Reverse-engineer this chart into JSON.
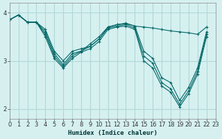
{
  "xlabel": "Humidex (Indice chaleur)",
  "ylabel": "",
  "bg_color": "#d6f0f0",
  "grid_color": "#b0d8d8",
  "line_color": "#006666",
  "marker": "+",
  "xlim": [
    0,
    23
  ],
  "ylim": [
    1.8,
    4.2
  ],
  "yticks": [
    2,
    3,
    4
  ],
  "xticks": [
    0,
    1,
    2,
    3,
    4,
    5,
    6,
    7,
    8,
    9,
    10,
    11,
    12,
    13,
    14,
    15,
    16,
    17,
    18,
    19,
    20,
    21,
    22,
    23
  ],
  "series": [
    [
      3.85,
      3.95,
      3.8,
      3.8,
      3.65,
      3.2,
      3.0,
      3.2,
      3.25,
      3.3,
      3.45,
      3.7,
      3.75,
      3.78,
      3.72,
      3.7,
      3.68,
      3.65,
      3.62,
      3.6,
      3.58,
      3.55,
      3.7
    ],
    [
      3.85,
      3.95,
      3.8,
      3.8,
      3.6,
      3.15,
      2.92,
      3.15,
      3.2,
      3.35,
      3.5,
      3.7,
      3.75,
      3.77,
      3.72,
      3.2,
      3.05,
      2.65,
      2.55,
      2.18,
      2.45,
      2.85,
      3.6
    ],
    [
      3.85,
      3.95,
      3.8,
      3.8,
      3.55,
      3.1,
      2.88,
      3.1,
      3.2,
      3.3,
      3.45,
      3.68,
      3.72,
      3.75,
      3.68,
      3.1,
      2.95,
      2.55,
      2.42,
      2.1,
      2.38,
      2.78,
      3.55
    ],
    [
      3.85,
      3.95,
      3.8,
      3.8,
      3.5,
      3.05,
      2.85,
      3.05,
      3.18,
      3.25,
      3.4,
      3.65,
      3.7,
      3.72,
      3.65,
      3.0,
      2.85,
      2.48,
      2.35,
      2.05,
      2.32,
      2.72,
      3.5
    ]
  ]
}
